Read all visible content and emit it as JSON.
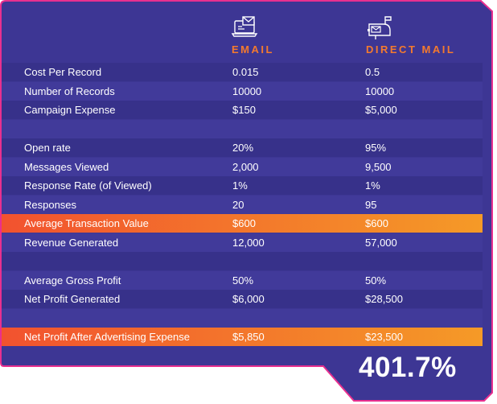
{
  "columns": {
    "email": {
      "title": "EMAIL",
      "icon": "email-laptop-icon"
    },
    "direct_mail": {
      "title": "DIRECT MAIL",
      "icon": "mailbox-icon"
    }
  },
  "rows": [
    {
      "label": "Cost Per Record",
      "email": "0.015",
      "direct_mail": "0.5"
    },
    {
      "label": "Number of Records",
      "email": "10000",
      "direct_mail": "10000"
    },
    {
      "label": "Campaign Expense",
      "email": "$150",
      "direct_mail": "$5,000"
    },
    {
      "label": "",
      "email": "",
      "direct_mail": ""
    },
    {
      "label": "Open rate",
      "email": "20%",
      "direct_mail": "95%"
    },
    {
      "label": "Messages Viewed",
      "email": "2,000",
      "direct_mail": "9,500"
    },
    {
      "label": "Response Rate (of Viewed)",
      "email": "1%",
      "direct_mail": "1%"
    },
    {
      "label": "Responses",
      "email": "20",
      "direct_mail": "95"
    },
    {
      "label": "Average Transaction Value",
      "email": "$600",
      "direct_mail": "$600"
    },
    {
      "label": "Revenue Generated",
      "email": "12,000",
      "direct_mail": "57,000"
    },
    {
      "label": "",
      "email": "",
      "direct_mail": ""
    },
    {
      "label": "Average Gross Profit",
      "email": "50%",
      "direct_mail": "50%"
    },
    {
      "label": "Net Profit Generated",
      "email": "$6,000",
      "direct_mail": "$28,500"
    },
    {
      "label": "",
      "email": "",
      "direct_mail": ""
    },
    {
      "label": "Net Profit After Advertising Expense",
      "email": "$5,850",
      "direct_mail": "$23,500"
    }
  ],
  "result": "401.7%",
  "colors": {
    "background": "#3d3694",
    "border": "#e8308f",
    "accent": "#f47a2e",
    "highlight_start": "#f2522f",
    "highlight_end": "#f59a27"
  }
}
